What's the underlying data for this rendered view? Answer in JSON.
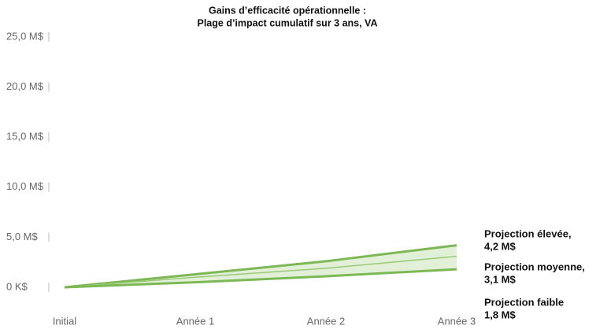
{
  "chart_data": {
    "type": "line",
    "title": [
      "Gains d’efficacité opérationnelle :",
      "Plage d’impact cumulatif sur 3 ans, VA"
    ],
    "categories": [
      "Initial",
      "Année 1",
      "Année 2",
      "Année 3"
    ],
    "series": [
      {
        "color": "#7cb854",
        "values": [
          0,
          1.3,
          2.6,
          4.2
        ]
      },
      {
        "color": "#9bc97a",
        "values": [
          0,
          1.0,
          1.9,
          3.1
        ]
      },
      {
        "color": "#7cb854",
        "values": [
          0,
          0.5,
          1.1,
          1.8
        ]
      }
    ],
    "band_color": "#e3f0d8",
    "ylim": [
      0,
      25
    ],
    "yticks": [
      {
        "value": 0,
        "label": "0 K$"
      },
      {
        "value": 5,
        "label": "5,0 M$"
      },
      {
        "value": 10,
        "label": "10,0 M$"
      },
      {
        "value": 15,
        "label": "15,0 M$"
      },
      {
        "value": 20,
        "label": "20,0 M$"
      },
      {
        "value": 25,
        "label": "25,0 M$"
      }
    ],
    "annotations": [
      [
        "Projection élevée,",
        "4,2 M$"
      ],
      [
        "Projection moyenne,",
        "3,1 M$"
      ],
      [
        "Projection faible",
        "1,8 M$"
      ]
    ]
  }
}
